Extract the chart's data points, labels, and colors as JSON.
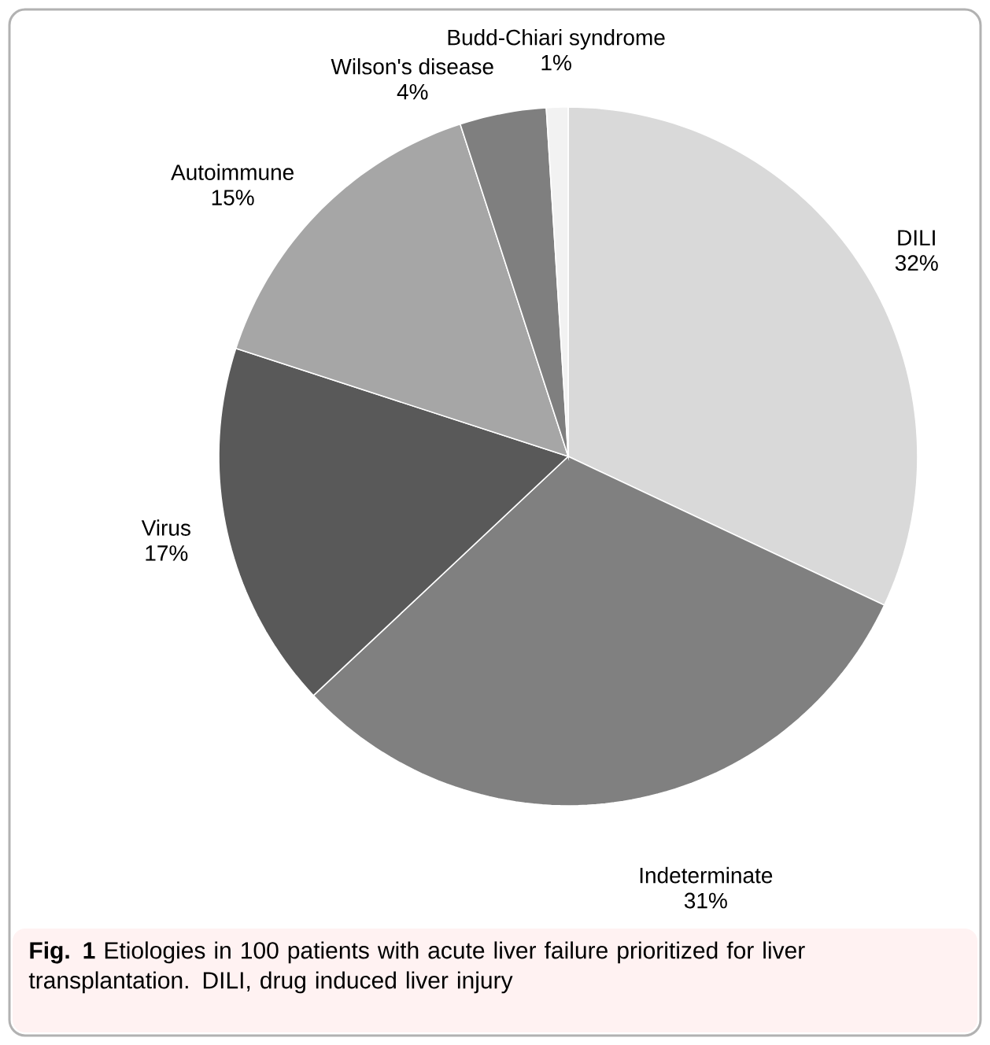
{
  "chart_data": {
    "type": "pie",
    "categories": [
      "DILI",
      "Indeterminate",
      "Virus",
      "Autoimmune",
      "Wilson's disease",
      "Budd-Chiari syndrome"
    ],
    "values": [
      32,
      31,
      17,
      15,
      4,
      1
    ],
    "value_labels": [
      "32%",
      "31%",
      "17%",
      "15%",
      "4%",
      "1%"
    ],
    "colors": [
      "#d9d9d9",
      "#808080",
      "#595959",
      "#a6a6a6",
      "#7f7f7f",
      "#f2f2f2"
    ],
    "annotations": [
      "**Fig. 1** Etiologies in 100 patients with acute liver failure prioritized for liver transplantation. DILI, drug induced liver injury"
    ]
  }
}
